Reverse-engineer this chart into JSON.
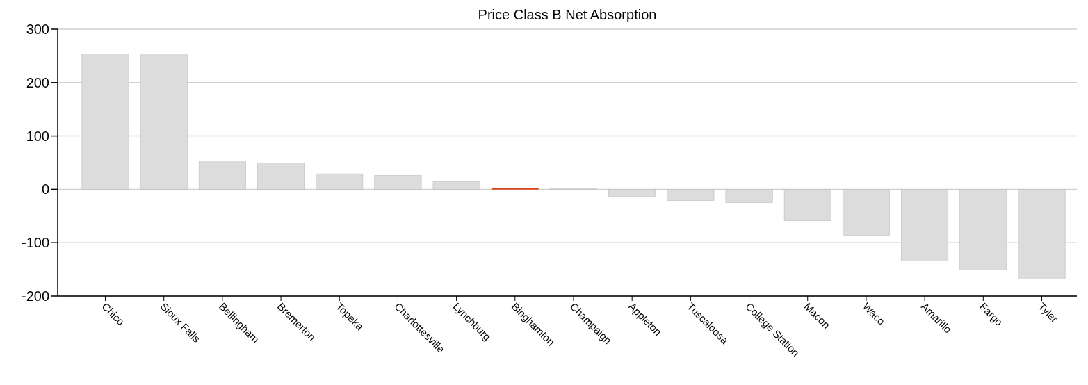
{
  "chart_data": {
    "type": "bar",
    "title": "Price Class B Net Absorption",
    "categories": [
      "Chico",
      "Sioux Falls",
      "Bellingham",
      "Bremerton",
      "Topeka",
      "Charlottesville",
      "Lynchburg",
      "Binghamton",
      "Champaign",
      "Appleton",
      "Tuscaloosa",
      "College Station",
      "Macon",
      "Waco",
      "Amarillo",
      "Fargo",
      "Tyler"
    ],
    "values": [
      254,
      252,
      53,
      49,
      29,
      26,
      14,
      2,
      2,
      -13,
      -21,
      -25,
      -59,
      -86,
      -134,
      -151,
      -168
    ],
    "colors": [
      "#dcdcdc",
      "#dcdcdc",
      "#dcdcdc",
      "#dcdcdc",
      "#dcdcdc",
      "#dcdcdc",
      "#dcdcdc",
      "#e0471c",
      "#dcdcdc",
      "#dcdcdc",
      "#dcdcdc",
      "#dcdcdc",
      "#dcdcdc",
      "#dcdcdc",
      "#dcdcdc",
      "#dcdcdc",
      "#dcdcdc"
    ],
    "ylim": [
      -200,
      300
    ],
    "yticks": [
      -200,
      -100,
      0,
      100,
      200,
      300
    ],
    "grid": "y"
  }
}
